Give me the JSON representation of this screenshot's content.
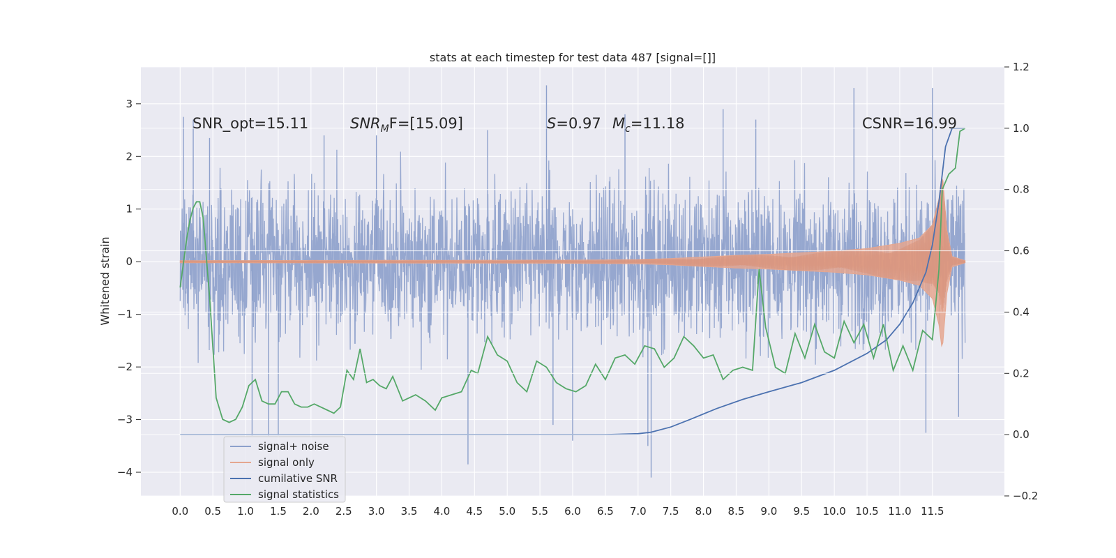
{
  "chart_data": {
    "type": "line",
    "title": "stats at each timestep for test data 487 [signal=[]]",
    "xlabel": "",
    "ylabel": "Whitened strain",
    "x_range": [
      -0.6,
      12.6
    ],
    "y_left_range": [
      -4.45,
      3.7
    ],
    "y_right_range": [
      -0.2,
      1.2
    ],
    "x_ticks": [
      "0.0",
      "0.5",
      "1.0",
      "1.5",
      "2.0",
      "2.5",
      "3.0",
      "3.5",
      "4.0",
      "4.5",
      "5.0",
      "5.5",
      "6.0",
      "6.5",
      "7.0",
      "7.5",
      "8.0",
      "8.5",
      "9.0",
      "9.5",
      "10.0",
      "10.5",
      "11.0",
      "11.5"
    ],
    "y_left_ticks": [
      "−4",
      "−3",
      "−2",
      "−1",
      "0",
      "1",
      "2",
      "3"
    ],
    "y_right_ticks": [
      "−0.2",
      "0.0",
      "0.2",
      "0.4",
      "0.6",
      "0.8",
      "1.0",
      "1.2"
    ],
    "grid": true,
    "legend_position": "lower-left",
    "annotations": {
      "snr_opt": "SNR_opt=15.11",
      "snr_mf_main": "SNR",
      "snr_mf_sub": "M",
      "snr_mf_rest": "F=[15.09]",
      "s_main": "S",
      "s_rest": "=0.97",
      "mc_main": "M",
      "mc_sub": "c",
      "mc_rest": "=11.18",
      "csnr": "CSNR=16.99"
    },
    "series": [
      {
        "name": "signal+ noise",
        "color": "#8da0cb",
        "axis": "left",
        "x_start": 0.0,
        "x_end": 12.0,
        "envelope_approx": [
          -1.6,
          1.6
        ],
        "note_values": "dense noise trace; extreme samples listed",
        "extremes": [
          {
            "x": 0.05,
            "y": 2.75
          },
          {
            "x": 0.2,
            "y": 2.7
          },
          {
            "x": 0.45,
            "y": 2.35
          },
          {
            "x": 1.1,
            "y": -3.3
          },
          {
            "x": 1.35,
            "y": -3.3
          },
          {
            "x": 1.5,
            "y": -3.3
          },
          {
            "x": 2.2,
            "y": 2.4
          },
          {
            "x": 3.0,
            "y": 2.4
          },
          {
            "x": 4.4,
            "y": -3.85
          },
          {
            "x": 4.7,
            "y": 2.5
          },
          {
            "x": 5.6,
            "y": 3.35
          },
          {
            "x": 5.7,
            "y": -3.1
          },
          {
            "x": 6.0,
            "y": -3.4
          },
          {
            "x": 6.8,
            "y": 2.8
          },
          {
            "x": 7.15,
            "y": -3.5
          },
          {
            "x": 7.2,
            "y": -4.1
          },
          {
            "x": 8.3,
            "y": 2.9
          },
          {
            "x": 8.8,
            "y": 2.7
          },
          {
            "x": 10.3,
            "y": 3.3
          },
          {
            "x": 11.4,
            "y": -3.25
          },
          {
            "x": 11.5,
            "y": 3.3
          },
          {
            "x": 11.9,
            "y": -2.95
          }
        ]
      },
      {
        "name": "signal only",
        "color": "#e5a68f",
        "axis": "left",
        "envelope": {
          "x": [
            0.0,
            6.0,
            7.0,
            7.5,
            8.0,
            8.5,
            9.0,
            9.5,
            10.0,
            10.5,
            11.0,
            11.3,
            11.5,
            11.6,
            11.65,
            11.72,
            11.8,
            12.0
          ],
          "amp": [
            0.02,
            0.03,
            0.04,
            0.06,
            0.09,
            0.12,
            0.14,
            0.17,
            0.2,
            0.25,
            0.35,
            0.45,
            0.7,
            1.2,
            1.7,
            0.6,
            0.1,
            0.02
          ]
        }
      },
      {
        "name": "cumilative SNR",
        "color": "#4c72b0",
        "axis": "right",
        "x": [
          0.0,
          5.0,
          6.5,
          7.0,
          7.2,
          7.5,
          7.8,
          8.2,
          8.6,
          9.0,
          9.5,
          10.0,
          10.5,
          10.8,
          11.0,
          11.2,
          11.4,
          11.5,
          11.6,
          11.7,
          11.8,
          12.0
        ],
        "values": [
          0.0,
          0.0,
          0.0,
          0.003,
          0.008,
          0.025,
          0.05,
          0.085,
          0.115,
          0.14,
          0.17,
          0.21,
          0.265,
          0.31,
          0.36,
          0.43,
          0.53,
          0.62,
          0.76,
          0.94,
          1.0,
          1.0
        ]
      },
      {
        "name": "signal statistics",
        "color": "#55a868",
        "axis": "right",
        "x": [
          0.0,
          0.1,
          0.15,
          0.2,
          0.25,
          0.3,
          0.35,
          0.45,
          0.55,
          0.65,
          0.75,
          0.85,
          0.95,
          1.05,
          1.15,
          1.25,
          1.35,
          1.45,
          1.55,
          1.65,
          1.75,
          1.85,
          1.95,
          2.05,
          2.15,
          2.25,
          2.35,
          2.45,
          2.55,
          2.65,
          2.75,
          2.85,
          2.95,
          3.05,
          3.15,
          3.25,
          3.4,
          3.5,
          3.6,
          3.75,
          3.9,
          4.0,
          4.15,
          4.3,
          4.45,
          4.55,
          4.7,
          4.85,
          5.0,
          5.15,
          5.3,
          5.45,
          5.6,
          5.75,
          5.9,
          6.05,
          6.2,
          6.35,
          6.5,
          6.65,
          6.8,
          6.95,
          7.1,
          7.25,
          7.4,
          7.55,
          7.7,
          7.85,
          8.0,
          8.15,
          8.3,
          8.45,
          8.6,
          8.75,
          8.85,
          8.95,
          9.1,
          9.25,
          9.4,
          9.55,
          9.7,
          9.85,
          10.0,
          10.15,
          10.3,
          10.45,
          10.6,
          10.75,
          10.9,
          11.05,
          11.2,
          11.35,
          11.5,
          11.6,
          11.65,
          11.75,
          11.85,
          11.92,
          12.0
        ],
        "values": [
          0.48,
          0.64,
          0.7,
          0.74,
          0.76,
          0.76,
          0.71,
          0.45,
          0.12,
          0.05,
          0.04,
          0.05,
          0.09,
          0.16,
          0.18,
          0.11,
          0.1,
          0.1,
          0.14,
          0.14,
          0.1,
          0.09,
          0.09,
          0.1,
          0.09,
          0.08,
          0.07,
          0.09,
          0.21,
          0.18,
          0.28,
          0.17,
          0.18,
          0.16,
          0.15,
          0.19,
          0.11,
          0.12,
          0.13,
          0.11,
          0.08,
          0.12,
          0.13,
          0.14,
          0.21,
          0.2,
          0.32,
          0.26,
          0.24,
          0.17,
          0.14,
          0.24,
          0.22,
          0.17,
          0.15,
          0.14,
          0.16,
          0.23,
          0.18,
          0.25,
          0.26,
          0.23,
          0.29,
          0.28,
          0.22,
          0.25,
          0.32,
          0.29,
          0.25,
          0.26,
          0.18,
          0.21,
          0.22,
          0.21,
          0.54,
          0.35,
          0.22,
          0.2,
          0.33,
          0.25,
          0.36,
          0.27,
          0.25,
          0.37,
          0.3,
          0.36,
          0.25,
          0.36,
          0.21,
          0.29,
          0.21,
          0.34,
          0.31,
          0.54,
          0.8,
          0.85,
          0.87,
          0.99,
          1.0
        ]
      }
    ]
  }
}
